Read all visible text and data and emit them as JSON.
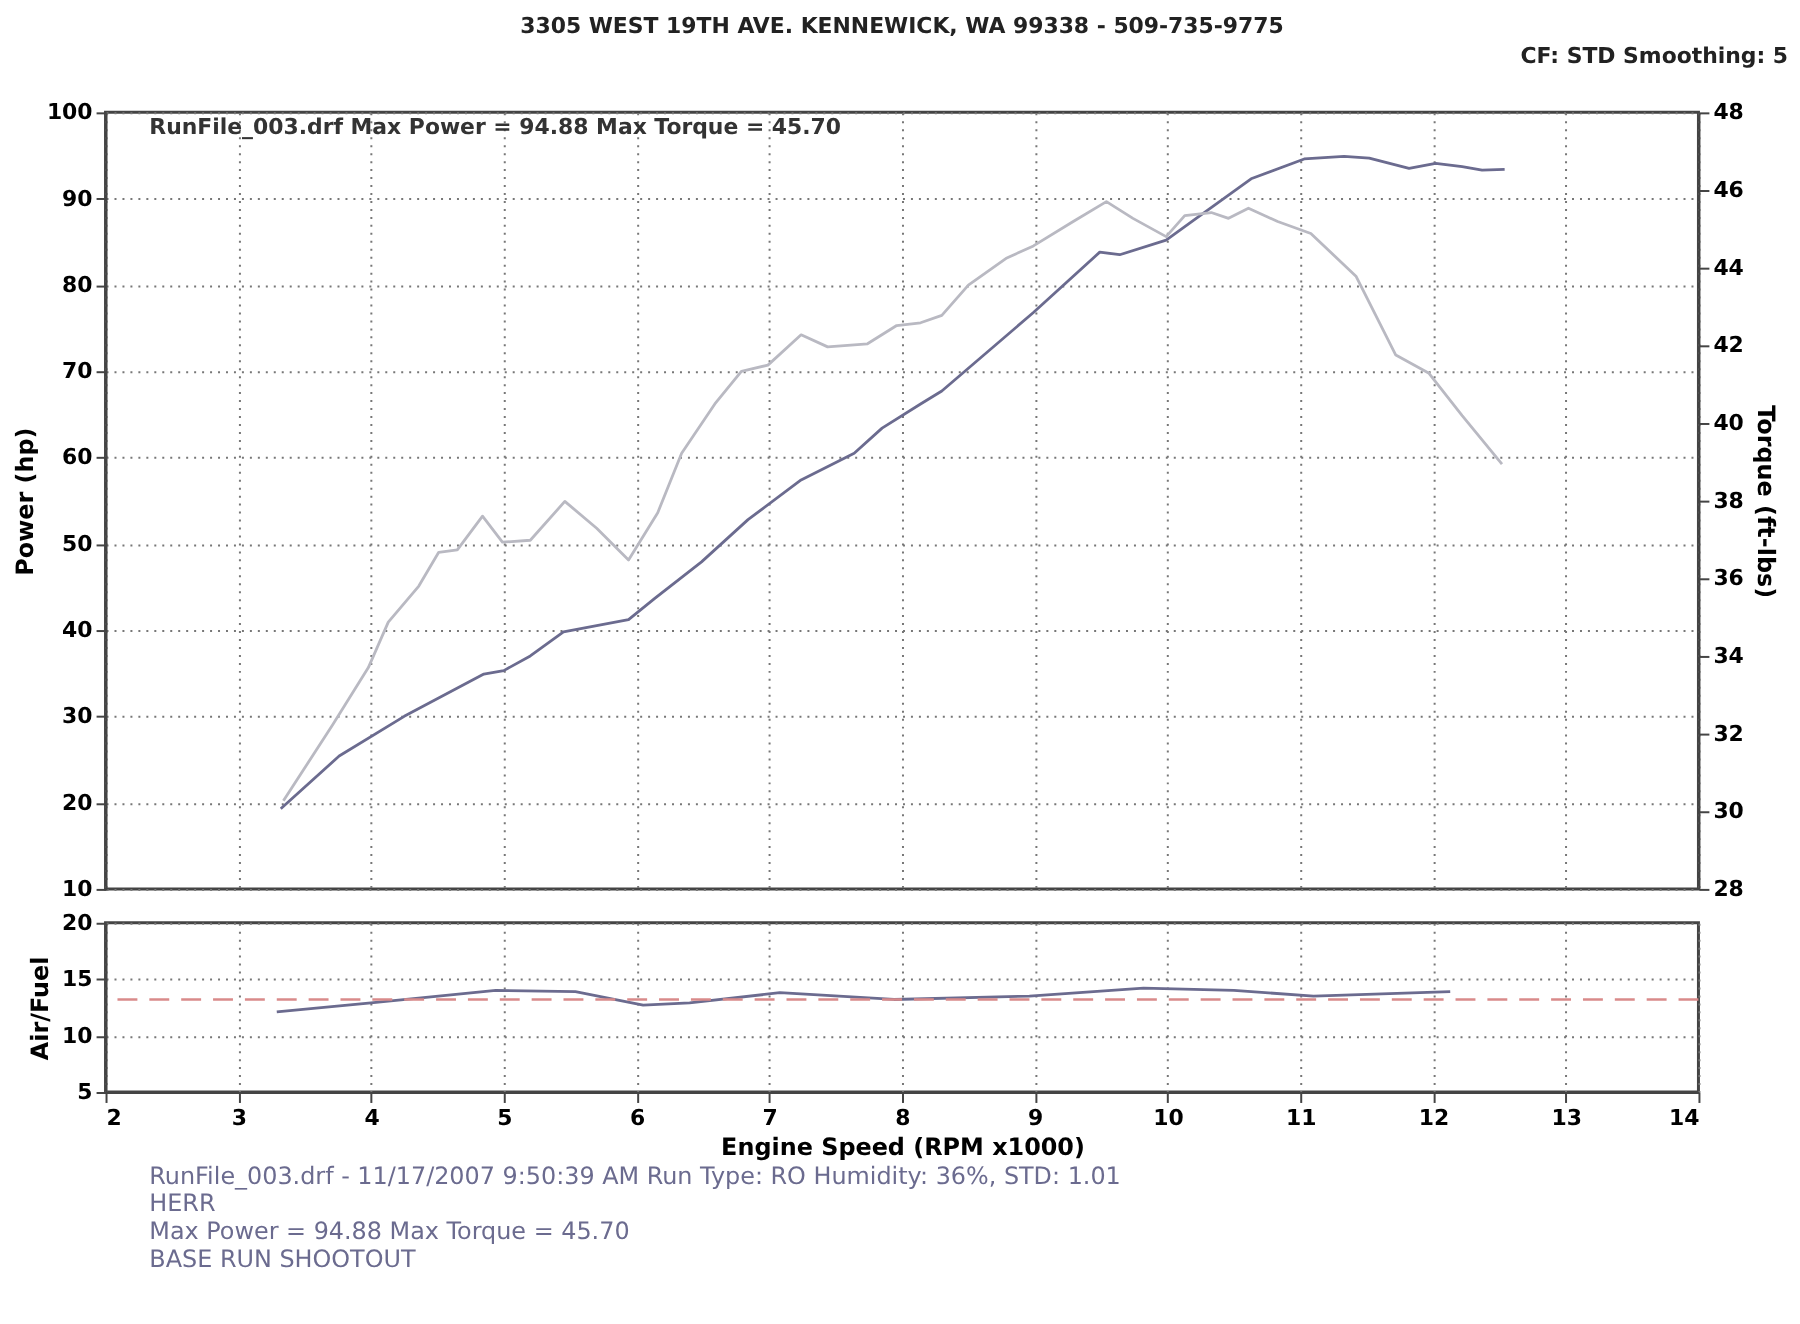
{
  "chart_data": [
    {
      "type": "line",
      "title": "3305 WEST 19TH AVE. KENNEWICK, WA 99338 - 509-735-9775",
      "ylabel": "Power (hp)",
      "y2label": "Torque (ft-lbs)",
      "xlim": [
        2,
        14
      ],
      "xticks": [
        2,
        3,
        4,
        5,
        6,
        7,
        8,
        9,
        10,
        11,
        12,
        13,
        14
      ],
      "ylim": [
        10,
        100
      ],
      "yticks": [
        10,
        20,
        30,
        40,
        50,
        60,
        70,
        80,
        90,
        100
      ],
      "y2lim": [
        28,
        48
      ],
      "y2ticks": [
        28,
        30,
        32,
        34,
        36,
        38,
        40,
        42,
        44,
        46,
        48
      ],
      "grid": true,
      "tick_labels": "y",
      "marker": "none",
      "line_style": "solid",
      "annotations": [
        "RunFile_003.drf Max Power = 94.88    Max Torque = 45.70",
        "CF: STD  Smoothing: 5"
      ],
      "series": [
        {
          "color": "#6b6b8f",
          "x": [
            3.32,
            3.76,
            4.25,
            4.85,
            5.0,
            5.2,
            5.45,
            5.94,
            6.14,
            6.49,
            6.84,
            7.24,
            7.64,
            7.85,
            8.14,
            8.3,
            8.99,
            9.49,
            9.64,
            9.99,
            10.18,
            10.63,
            11.03,
            11.33,
            11.52,
            11.82,
            12.02,
            12.22,
            12.37,
            12.54
          ],
          "values": [
            19.3,
            25.4,
            30.0,
            34.9,
            35.3,
            37.0,
            39.8,
            41.2,
            43.7,
            47.9,
            52.8,
            57.4,
            60.5,
            63.4,
            66.2,
            67.7,
            76.8,
            83.8,
            83.5,
            85.2,
            87.3,
            92.3,
            94.6,
            94.9,
            94.7,
            93.5,
            94.1,
            93.7,
            93.3,
            93.4
          ]
        },
        {
          "color": "#b9b9c2",
          "axis": "y2",
          "x": [
            3.34,
            3.71,
            3.98,
            4.13,
            4.36,
            4.51,
            4.65,
            4.84,
            4.99,
            5.2,
            5.46,
            5.7,
            5.94,
            6.16,
            6.34,
            6.59,
            6.79,
            6.99,
            7.24,
            7.44,
            7.74,
            7.96,
            8.14,
            8.3,
            8.5,
            8.79,
            8.99,
            9.29,
            9.54,
            9.74,
            9.99,
            10.13,
            10.33,
            10.46,
            10.61,
            10.83,
            11.08,
            11.42,
            11.72,
            11.97,
            12.22,
            12.52
          ],
          "values": [
            30.27,
            32.22,
            33.7,
            34.87,
            35.8,
            36.67,
            36.73,
            37.6,
            36.93,
            36.98,
            37.98,
            37.29,
            36.47,
            37.69,
            39.22,
            40.49,
            41.33,
            41.49,
            42.27,
            41.96,
            42.04,
            42.51,
            42.58,
            42.77,
            43.55,
            44.25,
            44.56,
            45.19,
            45.7,
            45.27,
            44.8,
            45.34,
            45.42,
            45.27,
            45.53,
            45.19,
            44.88,
            43.78,
            41.75,
            41.28,
            40.19,
            38.94
          ]
        }
      ]
    },
    {
      "type": "line",
      "xlabel": "Engine Speed (RPM x1000)",
      "ylabel": "Air/Fuel",
      "xlim": [
        2,
        14
      ],
      "xticks": [
        2,
        3,
        4,
        5,
        6,
        7,
        8,
        9,
        10,
        11,
        12,
        13,
        14
      ],
      "ylim": [
        5,
        20
      ],
      "yticks": [
        5,
        10,
        15,
        20
      ],
      "grid": true,
      "marker": "none",
      "line_style": "solid",
      "ref_lines": [
        {
          "axis": "y",
          "value": 13.2,
          "color": "#d98a8a",
          "line_style": "dashed"
        }
      ],
      "annotations": [
        "RunFile_003.drf - 11/17/2007 9:50:39 AM  Run Type: RO  Humidity: 36%, STD: 1.01",
        "HERR",
        "Max Power = 94.88  Max Torque = 45.70",
        "BASE RUN SHOOTOUT"
      ],
      "series": [
        {
          "color": "#6b6b8f",
          "x": [
            3.29,
            4.0,
            4.94,
            5.54,
            6.05,
            6.4,
            7.08,
            7.94,
            8.96,
            9.82,
            10.5,
            11.1,
            12.13
          ],
          "values": [
            12.1,
            12.9,
            14.0,
            13.9,
            12.7,
            12.9,
            13.8,
            13.2,
            13.5,
            14.2,
            14.0,
            13.5,
            13.9
          ]
        }
      ]
    }
  ]
}
